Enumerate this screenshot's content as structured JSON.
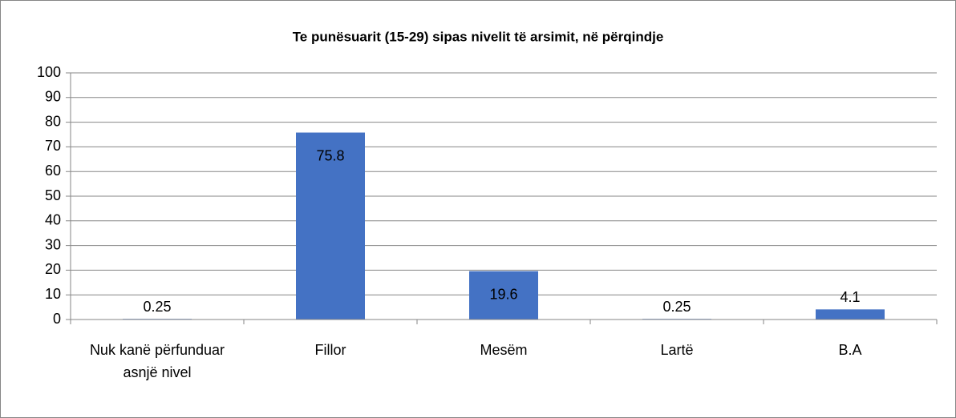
{
  "chart_data": {
    "type": "bar",
    "title": "Te punësuarit (15-29) sipas nivelit të arsimit, në përqindje",
    "categories": [
      "Nuk kanë përfunduar asnjë nivel",
      "Fillor",
      "Mesëm",
      "Lartë",
      "B.A"
    ],
    "values": [
      0.25,
      75.8,
      19.6,
      0.25,
      4.1
    ],
    "color": "#4472c4",
    "ylim": [
      0,
      100
    ],
    "yticks": [
      0,
      10,
      20,
      30,
      40,
      50,
      60,
      70,
      80,
      90,
      100
    ],
    "grid": true
  }
}
